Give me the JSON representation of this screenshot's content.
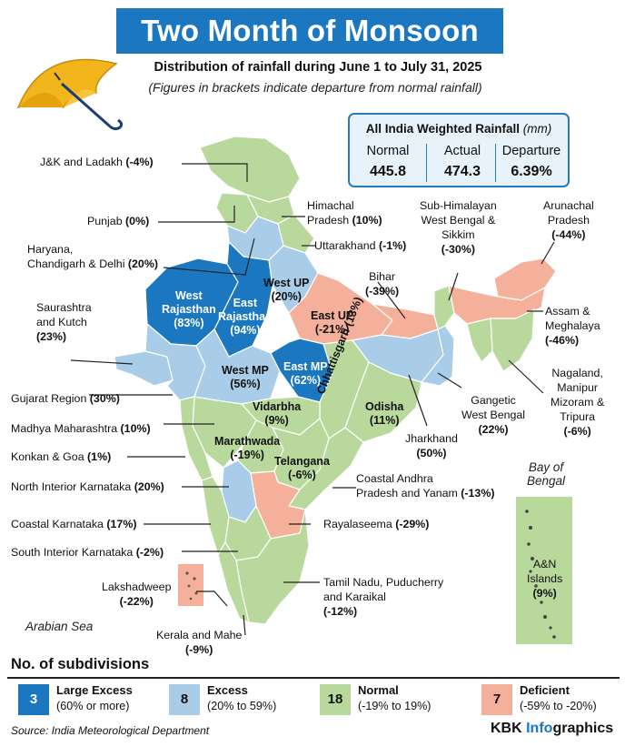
{
  "title": "Two Month of Monsoon",
  "subtitle": "Distribution of rainfall during June 1 to July 31, 2025",
  "note": "(Figures in brackets indicate departure from normal rainfall)",
  "summary": {
    "heading": "All India Weighted Rainfall",
    "unit": "(mm)",
    "normal_label": "Normal",
    "normal_value": "445.8",
    "actual_label": "Actual",
    "actual_value": "474.3",
    "departure_label": "Departure",
    "departure_value": "6.39%"
  },
  "colors": {
    "large_excess": "#1a77c0",
    "excess": "#a9cde8",
    "normal": "#b9d89c",
    "deficient": "#f4b09a"
  },
  "callouts": {
    "jk": {
      "name": "J&K and Ladakh",
      "val": "(-4%)"
    },
    "punjab": {
      "name": "Punjab",
      "val": "(0%)"
    },
    "haryana": {
      "name1": "Haryana,",
      "name2": "Chandigarh & Delhi",
      "val": "(20%)"
    },
    "saurashtra": {
      "name1": "Saurashtra",
      "name2": "and Kutch",
      "val": "(23%)"
    },
    "gujarat": {
      "name": "Gujarat Region",
      "val": "(30%)"
    },
    "madhya_maha": {
      "name": "Madhya Maharashtra",
      "val": "(10%)"
    },
    "konkan": {
      "name": "Konkan & Goa",
      "val": "(1%)"
    },
    "nik": {
      "name": "North Interior Karnataka",
      "val": "(20%)"
    },
    "coastal_k": {
      "name": "Coastal Karnataka",
      "val": "(17%)"
    },
    "sik": {
      "name": "South Interior Karnataka",
      "val": "(-2%)"
    },
    "lakshadweep": {
      "name": "Lakshadweep",
      "val": "(-22%)"
    },
    "kerala": {
      "name": "Kerala and Mahe",
      "val": "(-9%)"
    },
    "himachal": {
      "name1": "Himachal",
      "name2": "Pradesh",
      "val": "(10%)"
    },
    "uttarakhand": {
      "name": "Uttarakhand",
      "val": "(-1%)"
    },
    "shwb": {
      "name1": "Sub-Himalayan",
      "name2": "West Bengal &",
      "name3": "Sikkim",
      "val": "(-30%)"
    },
    "arunachal": {
      "name1": "Arunachal",
      "name2": "Pradesh",
      "val": "(-44%)"
    },
    "bihar": {
      "name": "Bihar",
      "val": "(-39%)"
    },
    "assam": {
      "name1": "Assam &",
      "name2": "Meghalaya",
      "val": "(-46%)"
    },
    "nmmt": {
      "name1": "Nagaland,",
      "name2": "Manipur",
      "name3": "Mizoram &",
      "name4": "Tripura",
      "val": "(-6%)"
    },
    "gangetic": {
      "name1": "Gangetic",
      "name2": "West Bengal",
      "val": "(22%)"
    },
    "jharkhand": {
      "name": "Jharkhand",
      "val": "(50%)"
    },
    "coastal_ap": {
      "name1": "Coastal Andhra",
      "name2": "Pradesh and Yanam",
      "val": "(-13%)"
    },
    "rayalaseema": {
      "name": "Rayalaseema",
      "val": "(-29%)"
    },
    "tn": {
      "name1": "Tamil Nadu, Puducherry",
      "name2": "and Karaikal",
      "val": "(-12%)"
    },
    "an": {
      "name1": "A&N",
      "name2": "Islands",
      "val": "(9%)"
    }
  },
  "map_labels": {
    "west_raj": {
      "name1": "West",
      "name2": "Rajasthan",
      "val": "(83%)"
    },
    "east_raj": {
      "name1": "East",
      "name2": "Rajasthan",
      "val": "(94%)"
    },
    "west_up": {
      "name": "West UP",
      "val": "(20%)"
    },
    "east_up": {
      "name": "East UP",
      "val": "(-21%)"
    },
    "west_mp": {
      "name": "West MP",
      "val": "(56%)"
    },
    "east_mp": {
      "name": "East MP",
      "val": "(62%)"
    },
    "vidarbha": {
      "name": "Vidarbha",
      "val": "(9%)"
    },
    "chhattisgarh": {
      "name": "Chhattisgarh",
      "val": "(13%)"
    },
    "odisha": {
      "name": "Odisha",
      "val": "(11%)"
    },
    "marathwada": {
      "name": "Marathwada",
      "val": "(-19%)"
    },
    "telangana": {
      "name": "Telangana",
      "val": "(-6%)"
    }
  },
  "seas": {
    "bay1": "Bay of",
    "bay2": "Bengal",
    "arabian": "Arabian Sea"
  },
  "legend": {
    "title": "No. of subdivisions",
    "items": [
      {
        "count": "3",
        "label": "Large Excess",
        "range": "(60% or more)"
      },
      {
        "count": "8",
        "label": "Excess",
        "range": "(20% to 59%)"
      },
      {
        "count": "18",
        "label": "Normal",
        "range": "(-19% to 19%)"
      },
      {
        "count": "7",
        "label": "Deficient",
        "range": "(-59% to -20%)"
      }
    ]
  },
  "source": "Source: India Meteorological Department",
  "brand": {
    "part1": "KBK ",
    "part2": "Info",
    "part3": "graphics"
  }
}
